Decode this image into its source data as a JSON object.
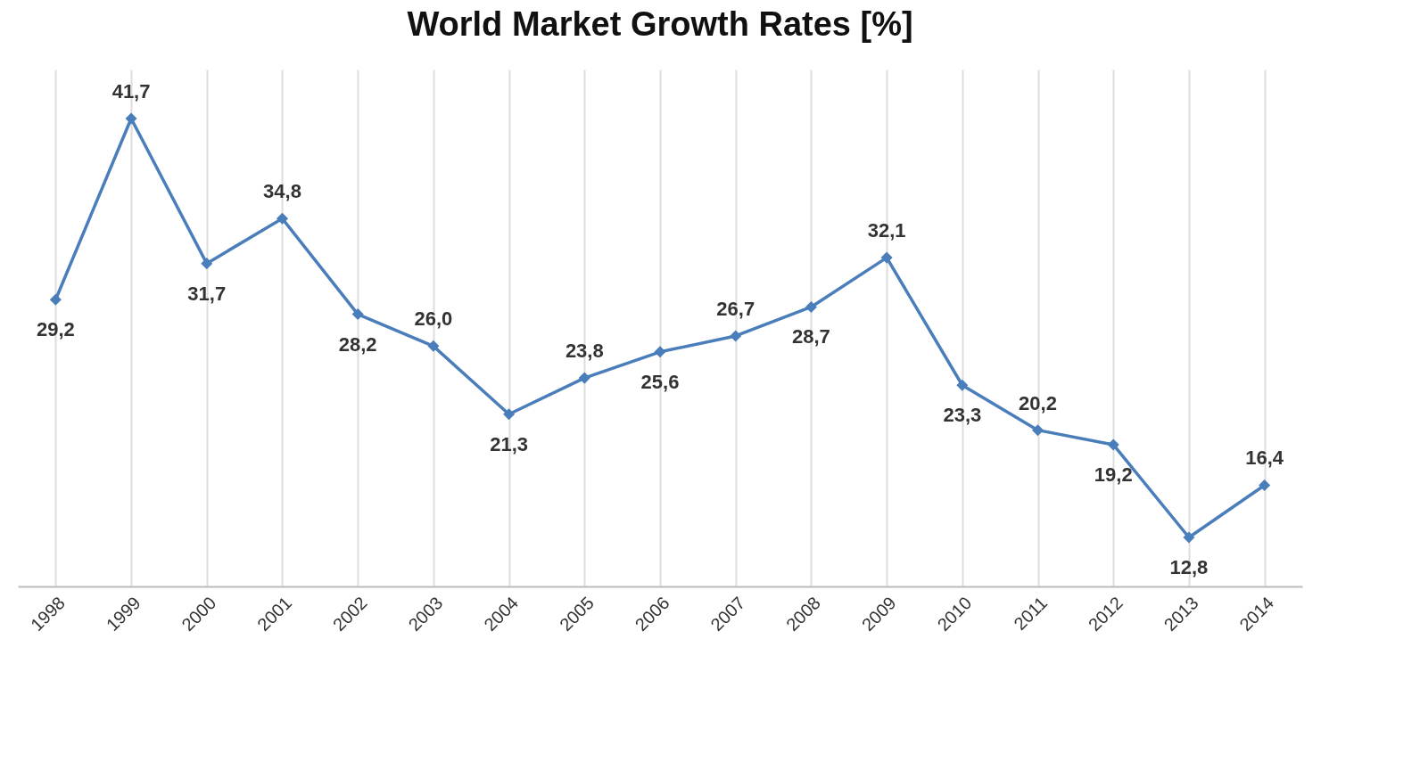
{
  "chart_data": {
    "type": "line",
    "title": "World Market Growth Rates [%]",
    "categories": [
      "1998",
      "1999",
      "2000",
      "2001",
      "2002",
      "2003",
      "2004",
      "2005",
      "2006",
      "2007",
      "2008",
      "2009",
      "2010",
      "2011",
      "2012",
      "2013",
      "2014"
    ],
    "series": [
      {
        "color": "#4a7ebb",
        "values": [
          29.2,
          41.7,
          31.7,
          34.8,
          28.2,
          26.0,
          21.3,
          23.8,
          25.6,
          26.7,
          28.7,
          32.1,
          23.3,
          20.2,
          19.2,
          12.8,
          16.4
        ],
        "value_labels": [
          "29,2",
          "41,7",
          "31,7",
          "34,8",
          "28,2",
          "26,0",
          "21,3",
          "23,8",
          "25,6",
          "26,7",
          "28,7",
          "32,1",
          "23,3",
          "20,2",
          "19,2",
          "12,8",
          "16,4"
        ]
      }
    ],
    "marker": "diamond",
    "grid": "x",
    "tick_labels": "x",
    "line_style": "solid"
  }
}
